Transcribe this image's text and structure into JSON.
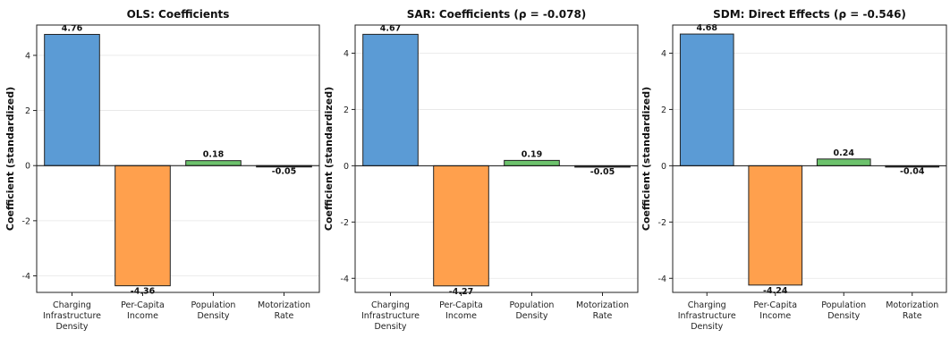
{
  "chart_data": [
    {
      "type": "bar",
      "title": "OLS: Coefficients",
      "ylabel": "Coefficient (standardized)",
      "xlabel": "",
      "categories": [
        [
          "Charging",
          "Infrastructure",
          "Density"
        ],
        [
          "Per-Capita",
          "Income"
        ],
        [
          "Population",
          "Density"
        ],
        [
          "Motorization",
          "Rate"
        ]
      ],
      "values": [
        4.76,
        -4.36,
        0.18,
        -0.05
      ],
      "value_labels": [
        "4.76",
        "-4.36",
        "0.18",
        "-0.05"
      ],
      "ylim": [
        -4.6,
        5.1
      ],
      "yticks": [
        -4,
        -2,
        0,
        2,
        4
      ],
      "grid": true
    },
    {
      "type": "bar",
      "title": "SAR: Coefficients (ρ = -0.078)",
      "ylabel": "Coefficient (standardized)",
      "xlabel": "",
      "categories": [
        [
          "Charging",
          "Infrastructure",
          "Density"
        ],
        [
          "Per-Capita",
          "Income"
        ],
        [
          "Population",
          "Density"
        ],
        [
          "Motorization",
          "Rate"
        ]
      ],
      "values": [
        4.67,
        -4.27,
        0.19,
        -0.05
      ],
      "value_labels": [
        "4.67",
        "-4.27",
        "0.19",
        "-0.05"
      ],
      "ylim": [
        -4.5,
        5.0
      ],
      "yticks": [
        -4,
        -2,
        0,
        2,
        4
      ],
      "grid": true
    },
    {
      "type": "bar",
      "title": "SDM: Direct Effects (ρ = -0.546)",
      "ylabel": "Coefficient (standardized)",
      "xlabel": "",
      "categories": [
        [
          "Charging",
          "Infrastructure",
          "Density"
        ],
        [
          "Per-Capita",
          "Income"
        ],
        [
          "Population",
          "Density"
        ],
        [
          "Motorization",
          "Rate"
        ]
      ],
      "values": [
        4.68,
        -4.24,
        0.24,
        -0.04
      ],
      "value_labels": [
        "4.68",
        "-4.24",
        "0.24",
        "-0.04"
      ],
      "ylim": [
        -4.5,
        5.0
      ],
      "yticks": [
        -4,
        -2,
        0,
        2,
        4
      ],
      "grid": true
    }
  ],
  "colors": [
    "#5b9bd5",
    "#ffa04d",
    "#6cc26c",
    "#3a3a3a"
  ]
}
